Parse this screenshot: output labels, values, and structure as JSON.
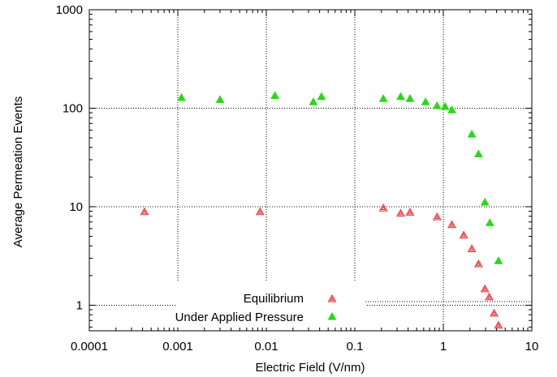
{
  "chart_data": {
    "type": "scatter",
    "title": "",
    "xlabel": "Electric Field (V/nm)",
    "ylabel": "Average Permeation Events",
    "xscale": "log",
    "yscale": "log",
    "xlim": [
      0.0001,
      10
    ],
    "ylim": [
      0.55,
      1000
    ],
    "grid": true,
    "legend_position": "bottom-center",
    "x_ticks": [
      {
        "value": 0.0001,
        "label": "0.0001"
      },
      {
        "value": 0.001,
        "label": "0.001"
      },
      {
        "value": 0.01,
        "label": "0.01"
      },
      {
        "value": 0.1,
        "label": "0.1"
      },
      {
        "value": 1,
        "label": "1"
      },
      {
        "value": 10,
        "label": "10"
      }
    ],
    "y_ticks": [
      {
        "value": 1,
        "label": "1"
      },
      {
        "value": 10,
        "label": "10"
      },
      {
        "value": 100,
        "label": "100"
      },
      {
        "value": 1000,
        "label": "1000"
      }
    ],
    "series": [
      {
        "name": "Equilibrium",
        "marker": "open-triangle",
        "color": "#e8262b",
        "points": [
          {
            "x": 0.00042,
            "y": 8.8
          },
          {
            "x": 0.0085,
            "y": 8.8
          },
          {
            "x": 0.21,
            "y": 9.6
          },
          {
            "x": 0.33,
            "y": 8.5
          },
          {
            "x": 0.42,
            "y": 8.7
          },
          {
            "x": 0.85,
            "y": 7.8
          },
          {
            "x": 1.25,
            "y": 6.5
          },
          {
            "x": 1.7,
            "y": 5.1
          },
          {
            "x": 2.1,
            "y": 3.7
          },
          {
            "x": 2.5,
            "y": 2.6
          },
          {
            "x": 2.95,
            "y": 1.45
          },
          {
            "x": 3.3,
            "y": 1.2
          },
          {
            "x": 3.75,
            "y": 0.82
          },
          {
            "x": 4.2,
            "y": 0.62
          }
        ]
      },
      {
        "name": "Under Applied Pressure",
        "marker": "filled-triangle",
        "color": "#22dd11",
        "points": [
          {
            "x": 0.0011,
            "y": 127
          },
          {
            "x": 0.003,
            "y": 121
          },
          {
            "x": 0.0125,
            "y": 133
          },
          {
            "x": 0.034,
            "y": 115
          },
          {
            "x": 0.042,
            "y": 130
          },
          {
            "x": 0.21,
            "y": 124
          },
          {
            "x": 0.33,
            "y": 130
          },
          {
            "x": 0.42,
            "y": 124
          },
          {
            "x": 0.63,
            "y": 115
          },
          {
            "x": 0.85,
            "y": 105
          },
          {
            "x": 1.05,
            "y": 103
          },
          {
            "x": 1.25,
            "y": 95
          },
          {
            "x": 2.1,
            "y": 54
          },
          {
            "x": 2.5,
            "y": 34
          },
          {
            "x": 2.95,
            "y": 11
          },
          {
            "x": 3.35,
            "y": 6.8
          },
          {
            "x": 4.2,
            "y": 2.8
          }
        ]
      }
    ]
  }
}
